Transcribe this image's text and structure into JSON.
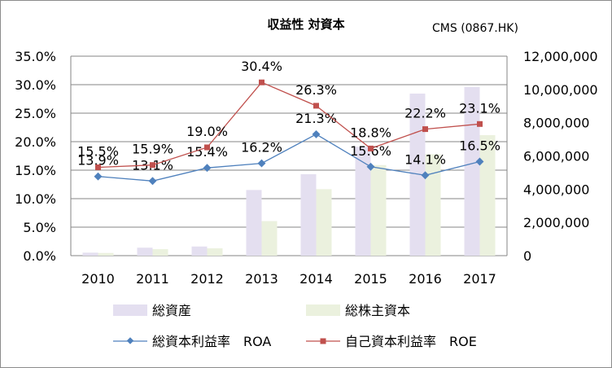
{
  "chart_data": {
    "type": "bar",
    "title": "収益性 対資本",
    "subtitle": "CMS (0867.HK)",
    "categories": [
      "2010",
      "2011",
      "2012",
      "2013",
      "2014",
      "2015",
      "2016",
      "2017"
    ],
    "y_left": {
      "min": 0,
      "max": 35,
      "step": 5,
      "tick_labels": [
        "0.0%",
        "5.0%",
        "10.0%",
        "15.0%",
        "20.0%",
        "25.0%",
        "30.0%",
        "35.0%"
      ]
    },
    "y_right": {
      "min": 0,
      "max": 12000000,
      "step": 2000000,
      "tick_labels": [
        "0",
        "2,000,000",
        "4,000,000",
        "6,000,000",
        "8,000,000",
        "10,000,000",
        "12,000,000"
      ]
    },
    "series": [
      {
        "name": "総資産",
        "kind": "bar",
        "axis": "right",
        "color": "#e4dff0",
        "values": [
          180000,
          480000,
          550000,
          3950000,
          4900000,
          6550000,
          9750000,
          10150000
        ]
      },
      {
        "name": "総株主資本",
        "kind": "bar",
        "axis": "right",
        "color": "#ebf1de",
        "values": [
          160000,
          390000,
          440000,
          2080000,
          4000000,
          5450000,
          6100000,
          7250000
        ]
      },
      {
        "name": "総資本利益率　ROA",
        "kind": "line",
        "axis": "left",
        "color": "#4f81bd",
        "values": [
          13.9,
          13.1,
          15.4,
          16.2,
          21.3,
          15.6,
          14.1,
          16.5
        ],
        "labels": [
          "13.9%",
          "13.1%",
          "15.4%",
          "16.2%",
          "21.3%",
          "15.6%",
          "14.1%",
          "16.5%"
        ]
      },
      {
        "name": "自己資本利益率　ROE",
        "kind": "line",
        "axis": "left",
        "color": "#c0504d",
        "values": [
          15.5,
          15.9,
          19.0,
          30.4,
          26.3,
          18.8,
          22.2,
          23.1
        ],
        "labels": [
          "15.5%",
          "15.9%",
          "19.0%",
          "30.4%",
          "26.3%",
          "18.8%",
          "22.2%",
          "23.1%"
        ]
      }
    ],
    "grid": true,
    "legend": "bottom"
  }
}
